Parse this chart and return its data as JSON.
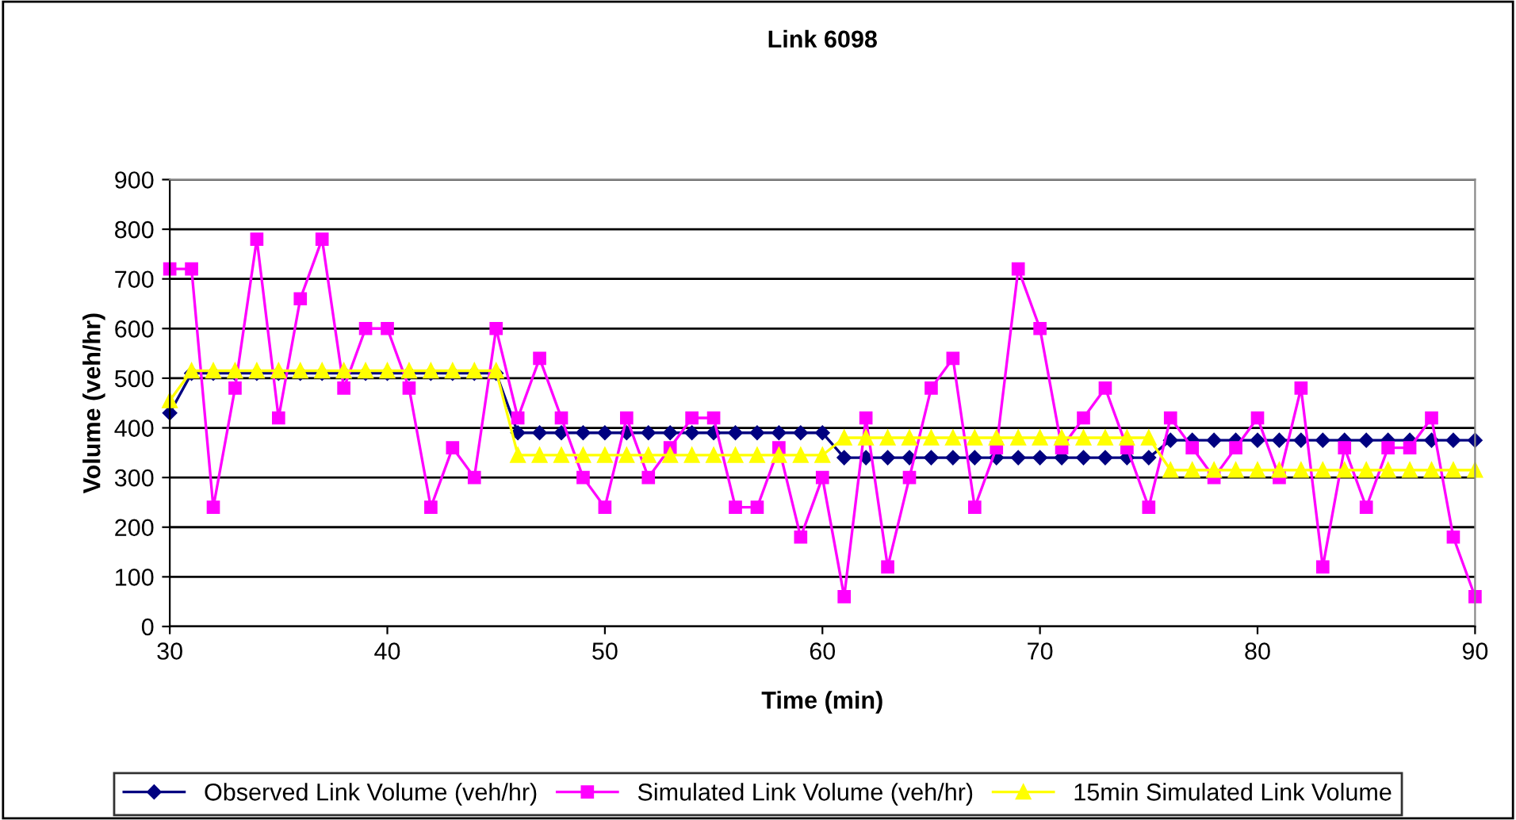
{
  "chart_data": {
    "type": "line",
    "title": "Link 6098",
    "xlabel": "Time (min)",
    "ylabel": "Volume (veh/hr)",
    "x": [
      30,
      31,
      32,
      33,
      34,
      35,
      36,
      37,
      38,
      39,
      40,
      41,
      42,
      43,
      44,
      45,
      46,
      47,
      48,
      49,
      50,
      51,
      52,
      53,
      54,
      55,
      56,
      57,
      58,
      59,
      60,
      61,
      62,
      63,
      64,
      65,
      66,
      67,
      68,
      69,
      70,
      71,
      72,
      73,
      74,
      75,
      76,
      77,
      78,
      79,
      80,
      81,
      82,
      83,
      84,
      85,
      86,
      87,
      88,
      89,
      90
    ],
    "series": [
      {
        "name": "Observed Link Volume (veh/hr)",
        "color": "#000080",
        "marker": "diamond",
        "values": [
          430,
          510,
          510,
          510,
          510,
          510,
          510,
          510,
          510,
          510,
          510,
          510,
          510,
          510,
          510,
          510,
          390,
          390,
          390,
          390,
          390,
          390,
          390,
          390,
          390,
          390,
          390,
          390,
          390,
          390,
          390,
          340,
          340,
          340,
          340,
          340,
          340,
          340,
          340,
          340,
          340,
          340,
          340,
          340,
          340,
          340,
          375,
          375,
          375,
          375,
          375,
          375,
          375,
          375,
          375,
          375,
          375,
          375,
          375,
          375,
          375
        ]
      },
      {
        "name": "Simulated Link Volume (veh/hr)",
        "color": "#ff00ff",
        "marker": "square",
        "values": [
          720,
          720,
          240,
          480,
          780,
          420,
          660,
          780,
          480,
          600,
          600,
          480,
          240,
          360,
          300,
          600,
          420,
          540,
          420,
          300,
          240,
          420,
          300,
          360,
          420,
          420,
          240,
          240,
          360,
          180,
          300,
          60,
          420,
          120,
          300,
          480,
          540,
          240,
          360,
          720,
          600,
          360,
          420,
          480,
          360,
          240,
          420,
          360,
          300,
          360,
          420,
          300,
          480,
          120,
          360,
          240,
          360,
          360,
          420,
          180,
          60
        ]
      },
      {
        "name": "15min Simulated Link Volume",
        "color": "#ffff00",
        "marker": "triangle",
        "values": [
          455,
          515,
          515,
          515,
          515,
          515,
          515,
          515,
          515,
          515,
          515,
          515,
          515,
          515,
          515,
          515,
          345,
          345,
          345,
          345,
          345,
          345,
          345,
          345,
          345,
          345,
          345,
          345,
          345,
          345,
          345,
          380,
          380,
          380,
          380,
          380,
          380,
          380,
          380,
          380,
          380,
          380,
          380,
          380,
          380,
          380,
          315,
          315,
          315,
          315,
          315,
          315,
          315,
          315,
          315,
          315,
          315,
          315,
          315,
          315,
          315
        ]
      }
    ],
    "xlim": [
      30,
      90
    ],
    "xticks": [
      30,
      40,
      50,
      60,
      70,
      80,
      90
    ],
    "ylim": [
      0,
      900
    ],
    "yticks": [
      0,
      100,
      200,
      300,
      400,
      500,
      600,
      700,
      800,
      900
    ],
    "grid": "y",
    "legend": "bottom",
    "line_style": "solid"
  }
}
